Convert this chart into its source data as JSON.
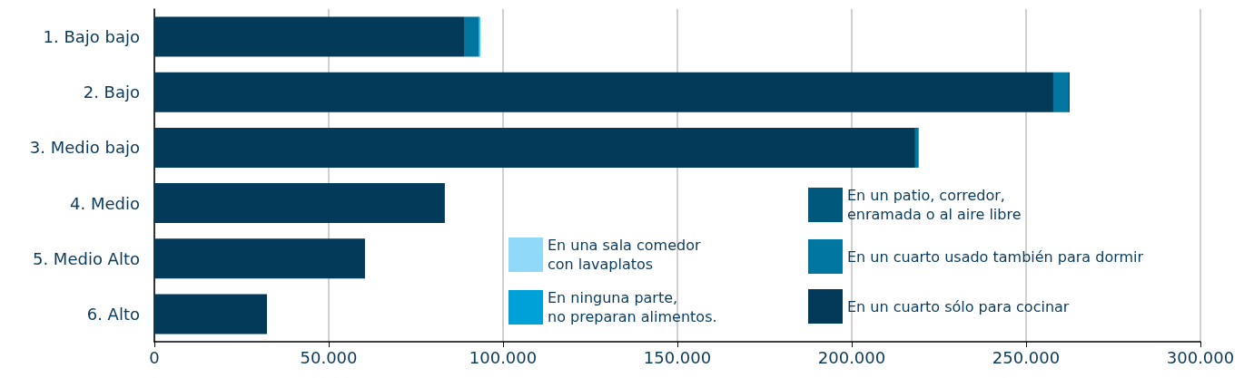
{
  "chart_data": {
    "type": "bar",
    "orientation": "horizontal",
    "stacked": true,
    "categories": [
      "1. Bajo bajo",
      "2. Bajo",
      "3. Medio bajo",
      "4. Medio",
      "5. Medio Alto",
      "6. Alto"
    ],
    "series": [
      {
        "name": "En un cuarto sólo para cocinar",
        "color": "#033a59",
        "values": [
          88800,
          257800,
          218200,
          83300,
          60400,
          32300
        ]
      },
      {
        "name": "En un cuarto usado también para dormir",
        "color": "#0075a0",
        "values": [
          4300,
          4200,
          1000,
          0,
          0,
          0
        ]
      },
      {
        "name": "En un patio, corredor,\nenramada o al aire libre",
        "color": "#00587c",
        "values": [
          0,
          500,
          0,
          0,
          0,
          0
        ]
      },
      {
        "name": "En ninguna parte,\nno preparan alimentos.",
        "color": "#00a0d8",
        "values": [
          300,
          0,
          0,
          0,
          0,
          0
        ]
      },
      {
        "name": "En una sala comedor\ncon lavaplatos",
        "color": "#90d9f8",
        "values": [
          0,
          0,
          0,
          0,
          0,
          0
        ]
      }
    ],
    "xlim": [
      0,
      300000
    ],
    "xticks": [
      0,
      {
        "value": 50000,
        "label": "50.000"
      },
      {
        "value": 100000,
        "label": "100.000"
      },
      {
        "value": 150000,
        "label": "150.000"
      },
      {
        "value": 200000,
        "label": "200.000"
      },
      {
        "value": 250000,
        "label": "250.000"
      },
      {
        "value": 300000,
        "label": "300.000"
      }
    ],
    "grid": "x",
    "legend": "bottom right"
  }
}
